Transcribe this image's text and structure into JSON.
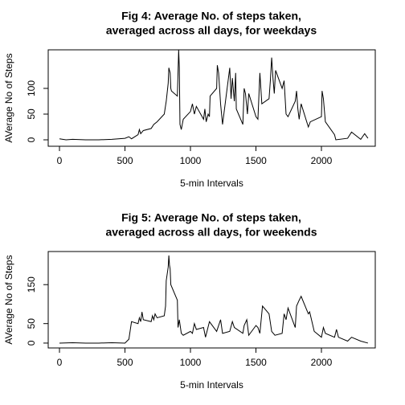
{
  "chart_data": [
    {
      "type": "line",
      "title": [
        "Fig 4:  Average No. of steps taken,",
        "averaged across all days, for weekdays"
      ],
      "x_label": "5-min Intervals",
      "y_label": "AVerage No of Steps",
      "xlim": [
        -86,
        2411
      ],
      "ylim": [
        -12.5,
        175
      ],
      "xticks": [
        0,
        500,
        1000,
        1500,
        2000
      ],
      "yticks": [
        0,
        50,
        100
      ],
      "color": "#000000",
      "x": [
        0,
        50,
        100,
        200,
        300,
        400,
        500,
        530,
        550,
        600,
        610,
        620,
        640,
        700,
        720,
        745,
        800,
        815,
        830,
        835,
        845,
        850,
        855,
        900,
        910,
        915,
        920,
        930,
        945,
        1000,
        1015,
        1030,
        1045,
        1100,
        1110,
        1120,
        1135,
        1145,
        1150,
        1200,
        1205,
        1215,
        1230,
        1245,
        1300,
        1310,
        1320,
        1335,
        1345,
        1350,
        1400,
        1410,
        1420,
        1435,
        1445,
        1500,
        1515,
        1530,
        1545,
        1600,
        1610,
        1620,
        1630,
        1640,
        1650,
        1700,
        1715,
        1730,
        1745,
        1800,
        1810,
        1820,
        1830,
        1845,
        1900,
        1915,
        2000,
        2005,
        2015,
        2030,
        2100,
        2110,
        2200,
        2230,
        2300,
        2330,
        2355
      ],
      "values": [
        2,
        0,
        1,
        0,
        0,
        1,
        3,
        6,
        2,
        10,
        20,
        12,
        18,
        22,
        30,
        35,
        50,
        75,
        110,
        140,
        130,
        100,
        95,
        85,
        175,
        140,
        30,
        20,
        40,
        55,
        70,
        50,
        65,
        40,
        60,
        35,
        50,
        45,
        85,
        100,
        145,
        130,
        70,
        30,
        140,
        80,
        120,
        75,
        130,
        60,
        30,
        100,
        90,
        50,
        90,
        45,
        40,
        130,
        70,
        80,
        115,
        160,
        120,
        90,
        135,
        100,
        115,
        50,
        45,
        75,
        95,
        60,
        40,
        70,
        25,
        35,
        45,
        95,
        80,
        35,
        10,
        0,
        3,
        15,
        1,
        12,
        3
      ]
    },
    {
      "type": "line",
      "title": [
        "Fig 5:  Average No. of steps taken,",
        "averaged across all days, for weekends"
      ],
      "x_label": "5-min Intervals",
      "y_label": "AVerage No of Steps",
      "xlim": [
        -86,
        2411
      ],
      "ylim": [
        -12.5,
        235
      ],
      "xticks": [
        0,
        500,
        1000,
        1500,
        2000
      ],
      "yticks": [
        0,
        50,
        150
      ],
      "color": "#000000",
      "x": [
        0,
        100,
        200,
        300,
        400,
        500,
        530,
        550,
        600,
        610,
        620,
        630,
        640,
        700,
        710,
        720,
        730,
        745,
        800,
        810,
        815,
        830,
        835,
        840,
        845,
        850,
        900,
        905,
        915,
        930,
        945,
        1000,
        1015,
        1030,
        1045,
        1100,
        1115,
        1130,
        1145,
        1200,
        1210,
        1230,
        1245,
        1300,
        1320,
        1335,
        1400,
        1410,
        1430,
        1445,
        1500,
        1515,
        1530,
        1550,
        1600,
        1620,
        1645,
        1700,
        1715,
        1730,
        1745,
        1800,
        1810,
        1830,
        1845,
        1900,
        1910,
        1945,
        2000,
        2015,
        2030,
        2100,
        2115,
        2130,
        2200,
        2230,
        2300,
        2355
      ],
      "values": [
        0,
        1,
        0,
        0,
        1,
        0,
        10,
        55,
        50,
        65,
        55,
        80,
        60,
        55,
        70,
        60,
        75,
        65,
        70,
        95,
        160,
        195,
        225,
        200,
        190,
        150,
        110,
        40,
        60,
        25,
        20,
        30,
        25,
        50,
        35,
        40,
        15,
        35,
        55,
        30,
        40,
        60,
        25,
        30,
        55,
        40,
        25,
        45,
        60,
        20,
        45,
        40,
        25,
        95,
        75,
        30,
        20,
        25,
        75,
        60,
        90,
        40,
        95,
        110,
        120,
        75,
        80,
        30,
        15,
        40,
        25,
        15,
        35,
        15,
        5,
        15,
        5,
        0
      ]
    }
  ]
}
